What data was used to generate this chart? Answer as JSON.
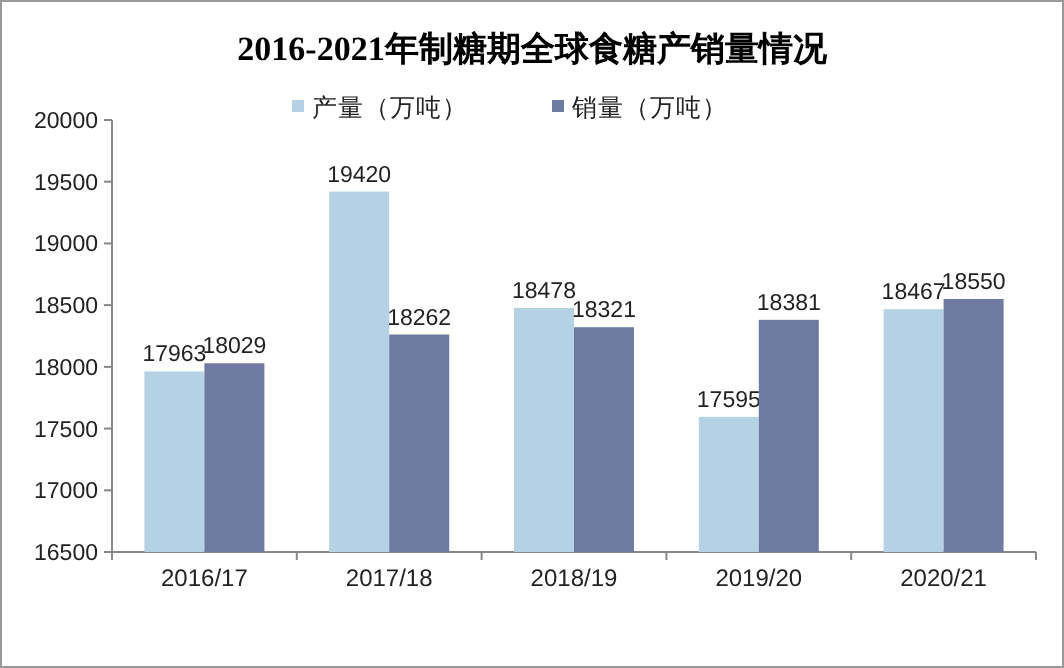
{
  "chart_data": {
    "type": "bar",
    "title": "2016-2021年制糖期全球食糖产销量情况",
    "categories": [
      "2016/17",
      "2017/18",
      "2018/19",
      "2019/20",
      "2020/21"
    ],
    "series": [
      {
        "name": "产量（万吨）",
        "color": "#b4d2e3",
        "values": [
          17963,
          19420,
          18478,
          17595,
          18467
        ]
      },
      {
        "name": "销量（万吨）",
        "color": "#6f7aa0",
        "values": [
          18029,
          18262,
          18321,
          18381,
          18550
        ]
      }
    ],
    "ylim": [
      16500,
      20000
    ],
    "yticks": [
      16500,
      17000,
      17500,
      18000,
      18500,
      19000,
      19500,
      20000
    ],
    "legend": "top",
    "data_labels": true
  }
}
